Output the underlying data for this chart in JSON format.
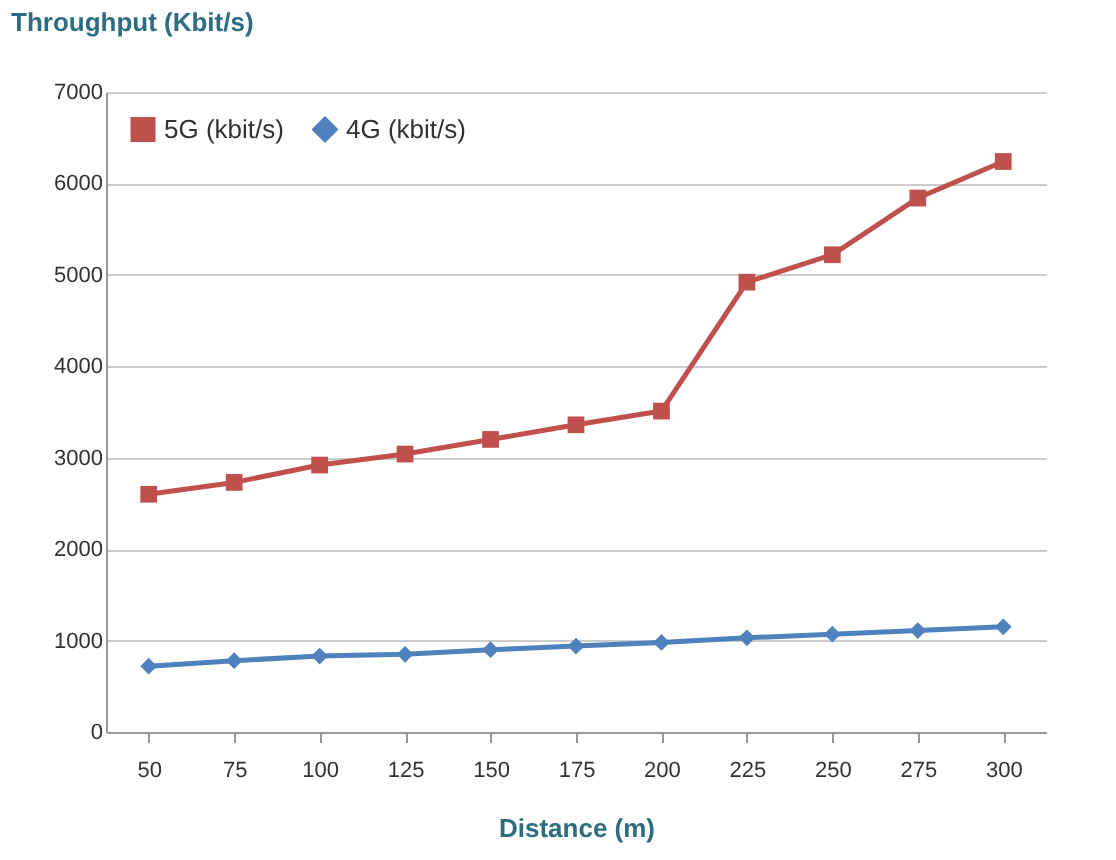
{
  "chart_data": {
    "type": "line",
    "xlabel": "Distance (m)",
    "ylabel": "Throughput (Kbit/s)",
    "categories": [
      "50",
      "75",
      "100",
      "125",
      "150",
      "175",
      "200",
      "225",
      "250",
      "275",
      "300"
    ],
    "series": [
      {
        "name": "5G (kbit/s)",
        "color": "#c0504d",
        "marker": "square",
        "values": [
          2600,
          2730,
          2920,
          3040,
          3200,
          3360,
          3510,
          4920,
          5220,
          5840,
          6240
        ]
      },
      {
        "name": "4G (kbit/s)",
        "color": "#4f81bd",
        "marker": "diamond",
        "values": [
          720,
          780,
          830,
          850,
          900,
          940,
          980,
          1030,
          1070,
          1110,
          1150
        ]
      }
    ],
    "ylim": [
      0,
      7000
    ],
    "yticks": [
      0,
      1000,
      2000,
      3000,
      4000,
      5000,
      6000,
      7000
    ],
    "grid": "y",
    "legend": "top left"
  }
}
